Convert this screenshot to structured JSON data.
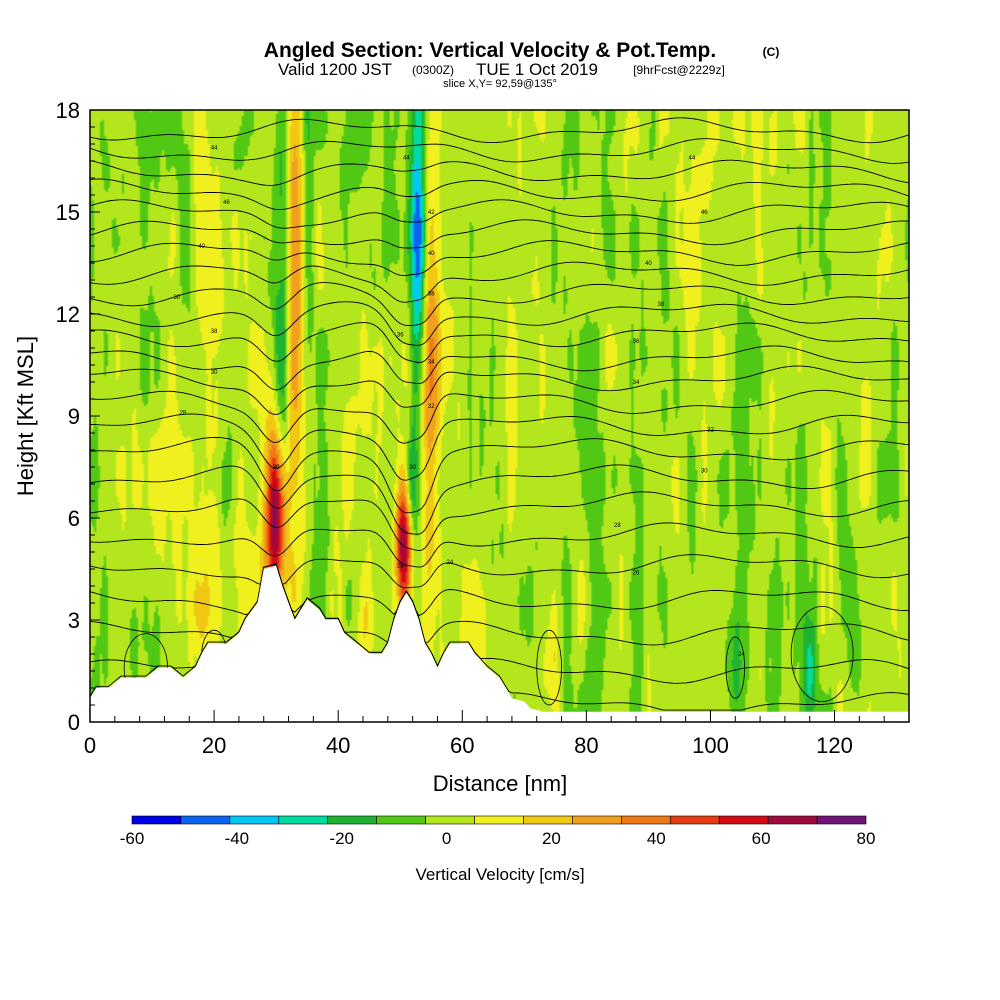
{
  "chart_data": {
    "type": "heatmap",
    "title": "Angled Section: Vertical Velocity & Pot.Temp.",
    "title_unit": "(C)",
    "subtitle_valid": "Valid 1200 JST",
    "subtitle_utc": "(0300Z)",
    "subtitle_date": "TUE 1 Oct 2019",
    "subtitle_fcst": "[9hrFcst@2229z]",
    "slice_info": "slice X,Y= 92,59@135°",
    "xlabel": "Distance [nm]",
    "ylabel": "Height [Kft MSL]",
    "xlim": [
      0,
      132
    ],
    "ylim": [
      0,
      18
    ],
    "x_ticks": [
      0,
      20,
      40,
      60,
      80,
      100,
      120
    ],
    "y_ticks": [
      0,
      3,
      6,
      9,
      12,
      15,
      18
    ],
    "colorbar": {
      "label": "Vertical Velocity [cm/s]",
      "ticks": [
        -60,
        -40,
        -20,
        0,
        20,
        40,
        60,
        80
      ],
      "bins": [
        -60,
        -50,
        -40,
        -30,
        -20,
        -10,
        0,
        10,
        20,
        30,
        40,
        50,
        60,
        70,
        80
      ],
      "colors": [
        "#0000e6",
        "#0a64f0",
        "#00c8f5",
        "#00dca0",
        "#1eb432",
        "#50c814",
        "#b4e61e",
        "#f0f01e",
        "#f0c814",
        "#f0a01e",
        "#f07814",
        "#e63c14",
        "#d20a14",
        "#a00a3c",
        "#6e1478"
      ]
    },
    "terrain": [
      [
        0,
        0.7
      ],
      [
        1,
        1
      ],
      [
        3,
        1
      ],
      [
        5,
        1.3
      ],
      [
        9,
        1.3
      ],
      [
        11,
        1.6
      ],
      [
        13,
        1.6
      ],
      [
        15,
        1.3
      ],
      [
        17,
        1.6
      ],
      [
        18,
        2
      ],
      [
        19,
        2.3
      ],
      [
        22,
        2.3
      ],
      [
        24,
        2.6
      ],
      [
        25,
        3
      ],
      [
        27,
        3.5
      ],
      [
        28,
        4.5
      ],
      [
        30,
        4.6
      ],
      [
        31,
        4
      ],
      [
        32,
        3.5
      ],
      [
        33,
        3
      ],
      [
        34,
        3.3
      ],
      [
        35,
        3.6
      ],
      [
        37,
        3.3
      ],
      [
        38,
        3
      ],
      [
        40,
        3
      ],
      [
        41,
        2.6
      ],
      [
        43,
        2.3
      ],
      [
        45,
        2
      ],
      [
        47,
        2
      ],
      [
        48,
        2.3
      ],
      [
        49,
        3
      ],
      [
        50,
        3.5
      ],
      [
        51,
        3.8
      ],
      [
        52,
        3.5
      ],
      [
        53,
        3
      ],
      [
        54,
        2.3
      ],
      [
        55,
        2
      ],
      [
        56,
        1.6
      ],
      [
        57,
        2
      ],
      [
        58,
        2.3
      ],
      [
        61,
        2.3
      ],
      [
        62,
        2
      ],
      [
        64,
        1.6
      ],
      [
        66,
        1.3
      ],
      [
        67,
        1
      ],
      [
        68,
        0.7
      ],
      [
        70,
        0.6
      ],
      [
        71,
        0.4
      ],
      [
        73,
        0.3
      ],
      [
        132,
        0.3
      ]
    ],
    "w_features": [
      {
        "x": 30,
        "z": 6.0,
        "sx": 1.1,
        "sz": 1.8,
        "w": 80
      },
      {
        "x": 33,
        "z": 12.0,
        "sx": 1.6,
        "sz": 6.0,
        "w": 35
      },
      {
        "x": 31,
        "z": 13.0,
        "sx": 0.9,
        "sz": 5.0,
        "w": -35
      },
      {
        "x": 35,
        "z": 14.0,
        "sx": 0.8,
        "sz": 5.0,
        "w": -25
      },
      {
        "x": 50.5,
        "z": 5.2,
        "sx": 0.9,
        "sz": 1.3,
        "w": 70
      },
      {
        "x": 54.5,
        "z": 12.0,
        "sx": 1.4,
        "sz": 6.0,
        "w": 35
      },
      {
        "x": 53,
        "z": 15.0,
        "sx": 0.9,
        "sz": 4.0,
        "w": -60
      },
      {
        "x": 52,
        "z": 7.0,
        "sx": 0.7,
        "sz": 1.2,
        "w": -30
      },
      {
        "x": 62,
        "z": 3.2,
        "sx": 1.5,
        "sz": 1.5,
        "w": 25
      },
      {
        "x": 45,
        "z": 3.0,
        "sx": 1.5,
        "sz": 1.2,
        "w": 15
      },
      {
        "x": 26,
        "z": 4.0,
        "sx": 1.4,
        "sz": 1.3,
        "w": 18
      },
      {
        "x": 18,
        "z": 3.0,
        "sx": 1.2,
        "sz": 1.5,
        "w": 12
      },
      {
        "x": 12,
        "z": 8.0,
        "sx": 4.0,
        "sz": 1.5,
        "w": 8
      },
      {
        "x": 20,
        "z": 14.0,
        "sx": 2.0,
        "sz": 4.0,
        "w": 10
      },
      {
        "x": 75,
        "z": 1.5,
        "sx": 1.0,
        "sz": 1.5,
        "w": 12
      },
      {
        "x": 104,
        "z": 1.5,
        "sx": 0.8,
        "sz": 1.3,
        "w": -20
      },
      {
        "x": 116,
        "z": 1.5,
        "sx": 0.8,
        "sz": 1.3,
        "w": -25
      },
      {
        "x": 8,
        "z": 2.0,
        "sx": 3.0,
        "sz": 1.5,
        "w": -12
      }
    ],
    "theta_base_levels": [
      0.5,
      1.5,
      2.6,
      3.6,
      4.6,
      5.5,
      6.4,
      7.2,
      8.0,
      8.7,
      9.4,
      10.1,
      10.7,
      11.4,
      12.0,
      12.6,
      13.2,
      13.8,
      14.4,
      15.0,
      15.6,
      16.2,
      16.8,
      17.4
    ],
    "contour_labels": [
      {
        "x": 14,
        "z": 12.5,
        "text": "30"
      },
      {
        "x": 18,
        "z": 14.0,
        "text": "40"
      },
      {
        "x": 22,
        "z": 15.3,
        "text": "46"
      },
      {
        "x": 20,
        "z": 16.9,
        "text": "44"
      },
      {
        "x": 20,
        "z": 11.5,
        "text": "38"
      },
      {
        "x": 20,
        "z": 10.3,
        "text": "30"
      },
      {
        "x": 15,
        "z": 9.1,
        "text": "28"
      },
      {
        "x": 30,
        "z": 7.5,
        "text": "30"
      },
      {
        "x": 51,
        "z": 16.6,
        "text": "44"
      },
      {
        "x": 55,
        "z": 15.0,
        "text": "42"
      },
      {
        "x": 55,
        "z": 13.8,
        "text": "40"
      },
      {
        "x": 55,
        "z": 12.6,
        "text": "38"
      },
      {
        "x": 50,
        "z": 11.4,
        "text": "36"
      },
      {
        "x": 55,
        "z": 10.6,
        "text": "34"
      },
      {
        "x": 55,
        "z": 9.3,
        "text": "32"
      },
      {
        "x": 52,
        "z": 7.5,
        "text": "30"
      },
      {
        "x": 50,
        "z": 4.6,
        "text": "28"
      },
      {
        "x": 58,
        "z": 4.7,
        "text": "24"
      },
      {
        "x": 97,
        "z": 16.6,
        "text": "44"
      },
      {
        "x": 99,
        "z": 15.0,
        "text": "46"
      },
      {
        "x": 90,
        "z": 13.5,
        "text": "40"
      },
      {
        "x": 92,
        "z": 12.3,
        "text": "38"
      },
      {
        "x": 88,
        "z": 11.2,
        "text": "36"
      },
      {
        "x": 88,
        "z": 10.0,
        "text": "34"
      },
      {
        "x": 100,
        "z": 8.6,
        "text": "32"
      },
      {
        "x": 99,
        "z": 7.4,
        "text": "30"
      },
      {
        "x": 85,
        "z": 5.8,
        "text": "28"
      },
      {
        "x": 88,
        "z": 4.4,
        "text": "26"
      },
      {
        "x": 105,
        "z": 2.0,
        "text": "24"
      }
    ]
  }
}
